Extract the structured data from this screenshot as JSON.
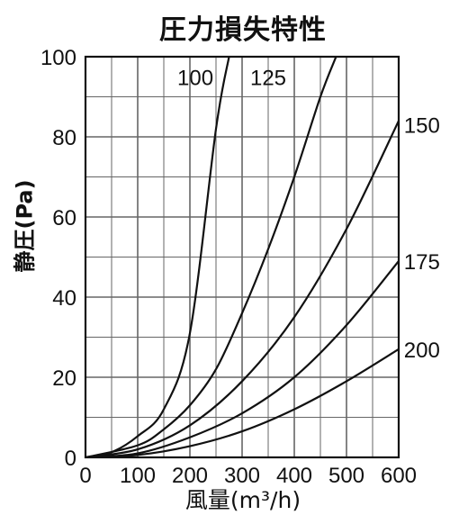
{
  "chart_data": {
    "type": "line",
    "title": "圧力損失特性",
    "xlabel": "風量(m³/h)",
    "ylabel": "静圧(Pa)",
    "xlim": [
      0,
      600
    ],
    "ylim": [
      0,
      100
    ],
    "x_ticks": [
      0,
      100,
      200,
      300,
      400,
      500,
      600
    ],
    "y_ticks": [
      0,
      20,
      40,
      60,
      80,
      100
    ],
    "grid": true,
    "legend": "inline labels",
    "series": [
      {
        "name": "100",
        "x": [
          0,
          50,
          100,
          150,
          200,
          250,
          275
        ],
        "y": [
          0,
          1.3,
          5.3,
          12.0,
          31.0,
          82.0,
          100
        ]
      },
      {
        "name": "125",
        "x": [
          0,
          100,
          150,
          200,
          250,
          300,
          350,
          400,
          450,
          480
        ],
        "y": [
          0,
          3,
          7,
          13,
          22,
          36,
          52,
          70,
          90,
          100
        ]
      },
      {
        "name": "150",
        "x": [
          0,
          100,
          200,
          300,
          400,
          500,
          600
        ],
        "y": [
          0,
          2,
          8,
          19,
          35,
          57,
          84
        ]
      },
      {
        "name": "175",
        "x": [
          0,
          100,
          200,
          300,
          400,
          500,
          600
        ],
        "y": [
          0,
          1,
          5,
          11,
          20,
          33,
          49
        ]
      },
      {
        "name": "200",
        "x": [
          0,
          100,
          200,
          300,
          400,
          500,
          600
        ],
        "y": [
          0,
          0.6,
          2.8,
          6.5,
          12,
          19,
          27
        ]
      }
    ]
  }
}
